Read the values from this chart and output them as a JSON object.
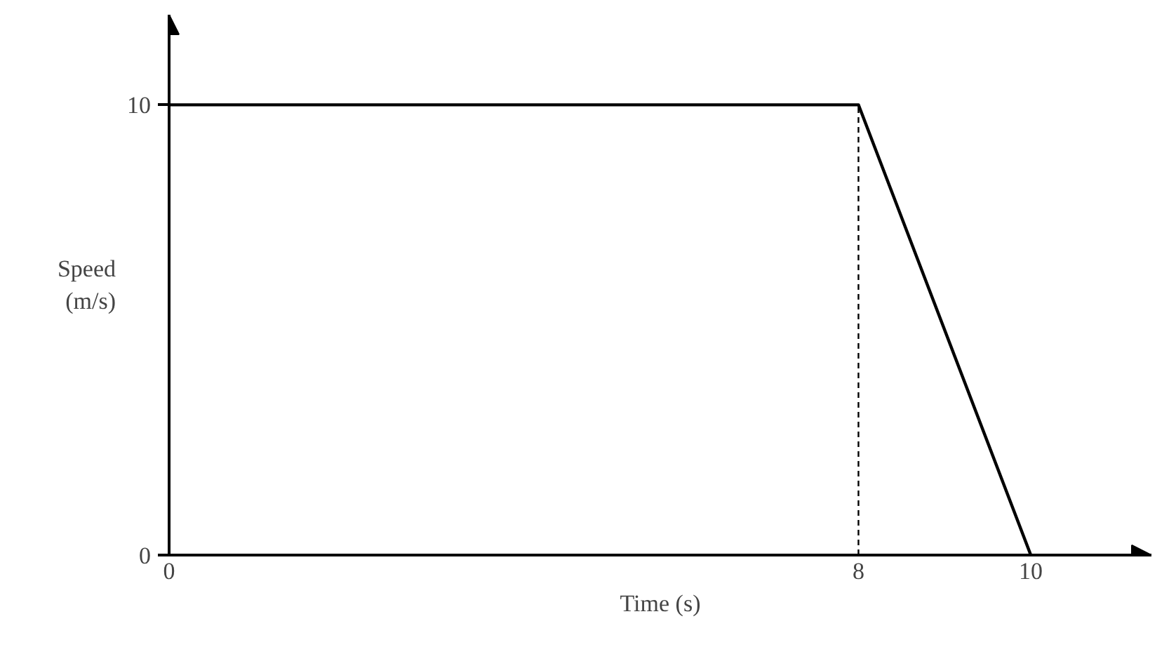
{
  "chart_data": {
    "type": "line",
    "xlabel": "Time (s)",
    "ylabel": "Speed\n(m/s)",
    "x": [
      0,
      8,
      10
    ],
    "series": [
      {
        "color": "#000000",
        "values": [
          10,
          10,
          0
        ]
      }
    ],
    "xlim": [
      0,
      11.4
    ],
    "ylim": [
      0,
      12
    ],
    "xticks": [
      0,
      8,
      10
    ],
    "yticks": [
      0,
      10
    ],
    "ref_lines": [
      {
        "axis": "x",
        "value": 8,
        "line_style": "dashed",
        "color": "#000000"
      }
    ],
    "grid": false,
    "marker": "none",
    "line_style": "solid"
  }
}
